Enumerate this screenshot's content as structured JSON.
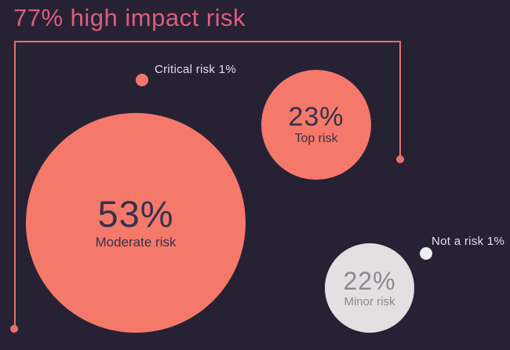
{
  "title": {
    "text": "77% high impact risk"
  },
  "colors": {
    "background": "#272134",
    "accent_salmon": "#f5796b",
    "bracket_line": "#e7716d",
    "title_rose": "#db5e7c",
    "gray_bubble": "#e2e0e1",
    "white_dot": "#eeedf1",
    "label_text": "#e2dfe9",
    "bubble_text_dark": "#37314a",
    "bubble_text_gray": "#8b8890"
  },
  "chart_data": {
    "type": "bubble",
    "title": "77% high impact risk",
    "unit": "percent",
    "legend": "none",
    "background": "#272134",
    "bubbles": [
      {
        "name": "Moderate risk",
        "value": 53,
        "value_label": "53%",
        "label": "Moderate risk",
        "color": "#f5796b",
        "text_color": "#37314a"
      },
      {
        "name": "Top risk",
        "value": 23,
        "value_label": "23%",
        "label": "Top risk",
        "color": "#f5796b",
        "text_color": "#37314a"
      },
      {
        "name": "Minor risk",
        "value": 22,
        "value_label": "22%",
        "label": "Minor risk",
        "color": "#e2e0e1",
        "text_color": "#8b8890"
      },
      {
        "name": "Critical risk",
        "value": 1,
        "label": "Critical risk 1%",
        "color": "#f3766c"
      },
      {
        "name": "Not a risk",
        "value": 1,
        "label": "Not a risk 1%",
        "color": "#eeedf1"
      }
    ],
    "group_bracket": {
      "label": "77% high impact risk",
      "total_pct": 77,
      "members": [
        "Critical risk",
        "Top risk",
        "Moderate risk"
      ]
    }
  }
}
